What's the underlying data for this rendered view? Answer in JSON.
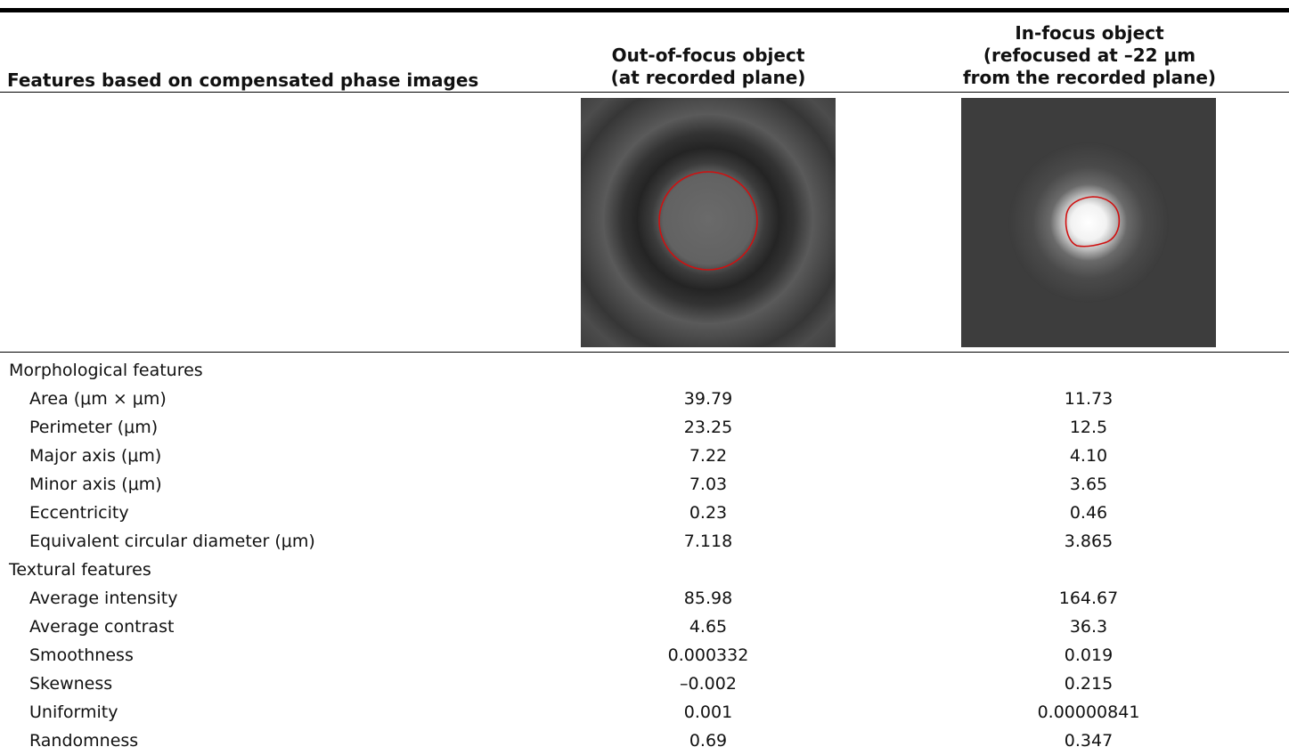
{
  "table": {
    "headers": {
      "features": "Features based on compensated phase images",
      "out_of_focus": [
        "Out-of-focus object",
        "(at recorded plane)"
      ],
      "in_focus": [
        "In-focus object",
        "(refocused at –22 μm",
        "from the recorded plane)"
      ]
    },
    "images": {
      "out_of_focus": "out-of-focus phase image with red contour",
      "in_focus": "in-focus phase image with red contour"
    },
    "groups": [
      {
        "title": "Morphological features",
        "rows": [
          {
            "label": "Area (μm × μm)",
            "out": "39.79",
            "in": "11.73"
          },
          {
            "label": "Perimeter (μm)",
            "out": "23.25",
            "in": "12.5"
          },
          {
            "label": "Major axis (μm)",
            "out": "7.22",
            "in": "4.10"
          },
          {
            "label": "Minor axis (μm)",
            "out": "7.03",
            "in": "3.65"
          },
          {
            "label": "Eccentricity",
            "out": "0.23",
            "in": "0.46"
          },
          {
            "label": "Equivalent circular diameter (μm)",
            "out": "7.118",
            "in": "3.865"
          }
        ]
      },
      {
        "title": "Textural features",
        "rows": [
          {
            "label": "Average intensity",
            "out": "85.98",
            "in": "164.67"
          },
          {
            "label": "Average contrast",
            "out": "4.65",
            "in": "36.3"
          },
          {
            "label": "Smoothness",
            "out": "0.000332",
            "in": "0.019"
          },
          {
            "label": "Skewness",
            "out": "–0.002",
            "in": "0.215"
          },
          {
            "label": "Uniformity",
            "out": "0.001",
            "in": "0.00000841"
          },
          {
            "label": "Randomness",
            "out": "0.69",
            "in": "0.347"
          }
        ]
      }
    ]
  },
  "colors": {
    "contour": "#d01010",
    "rule": "#000000"
  }
}
